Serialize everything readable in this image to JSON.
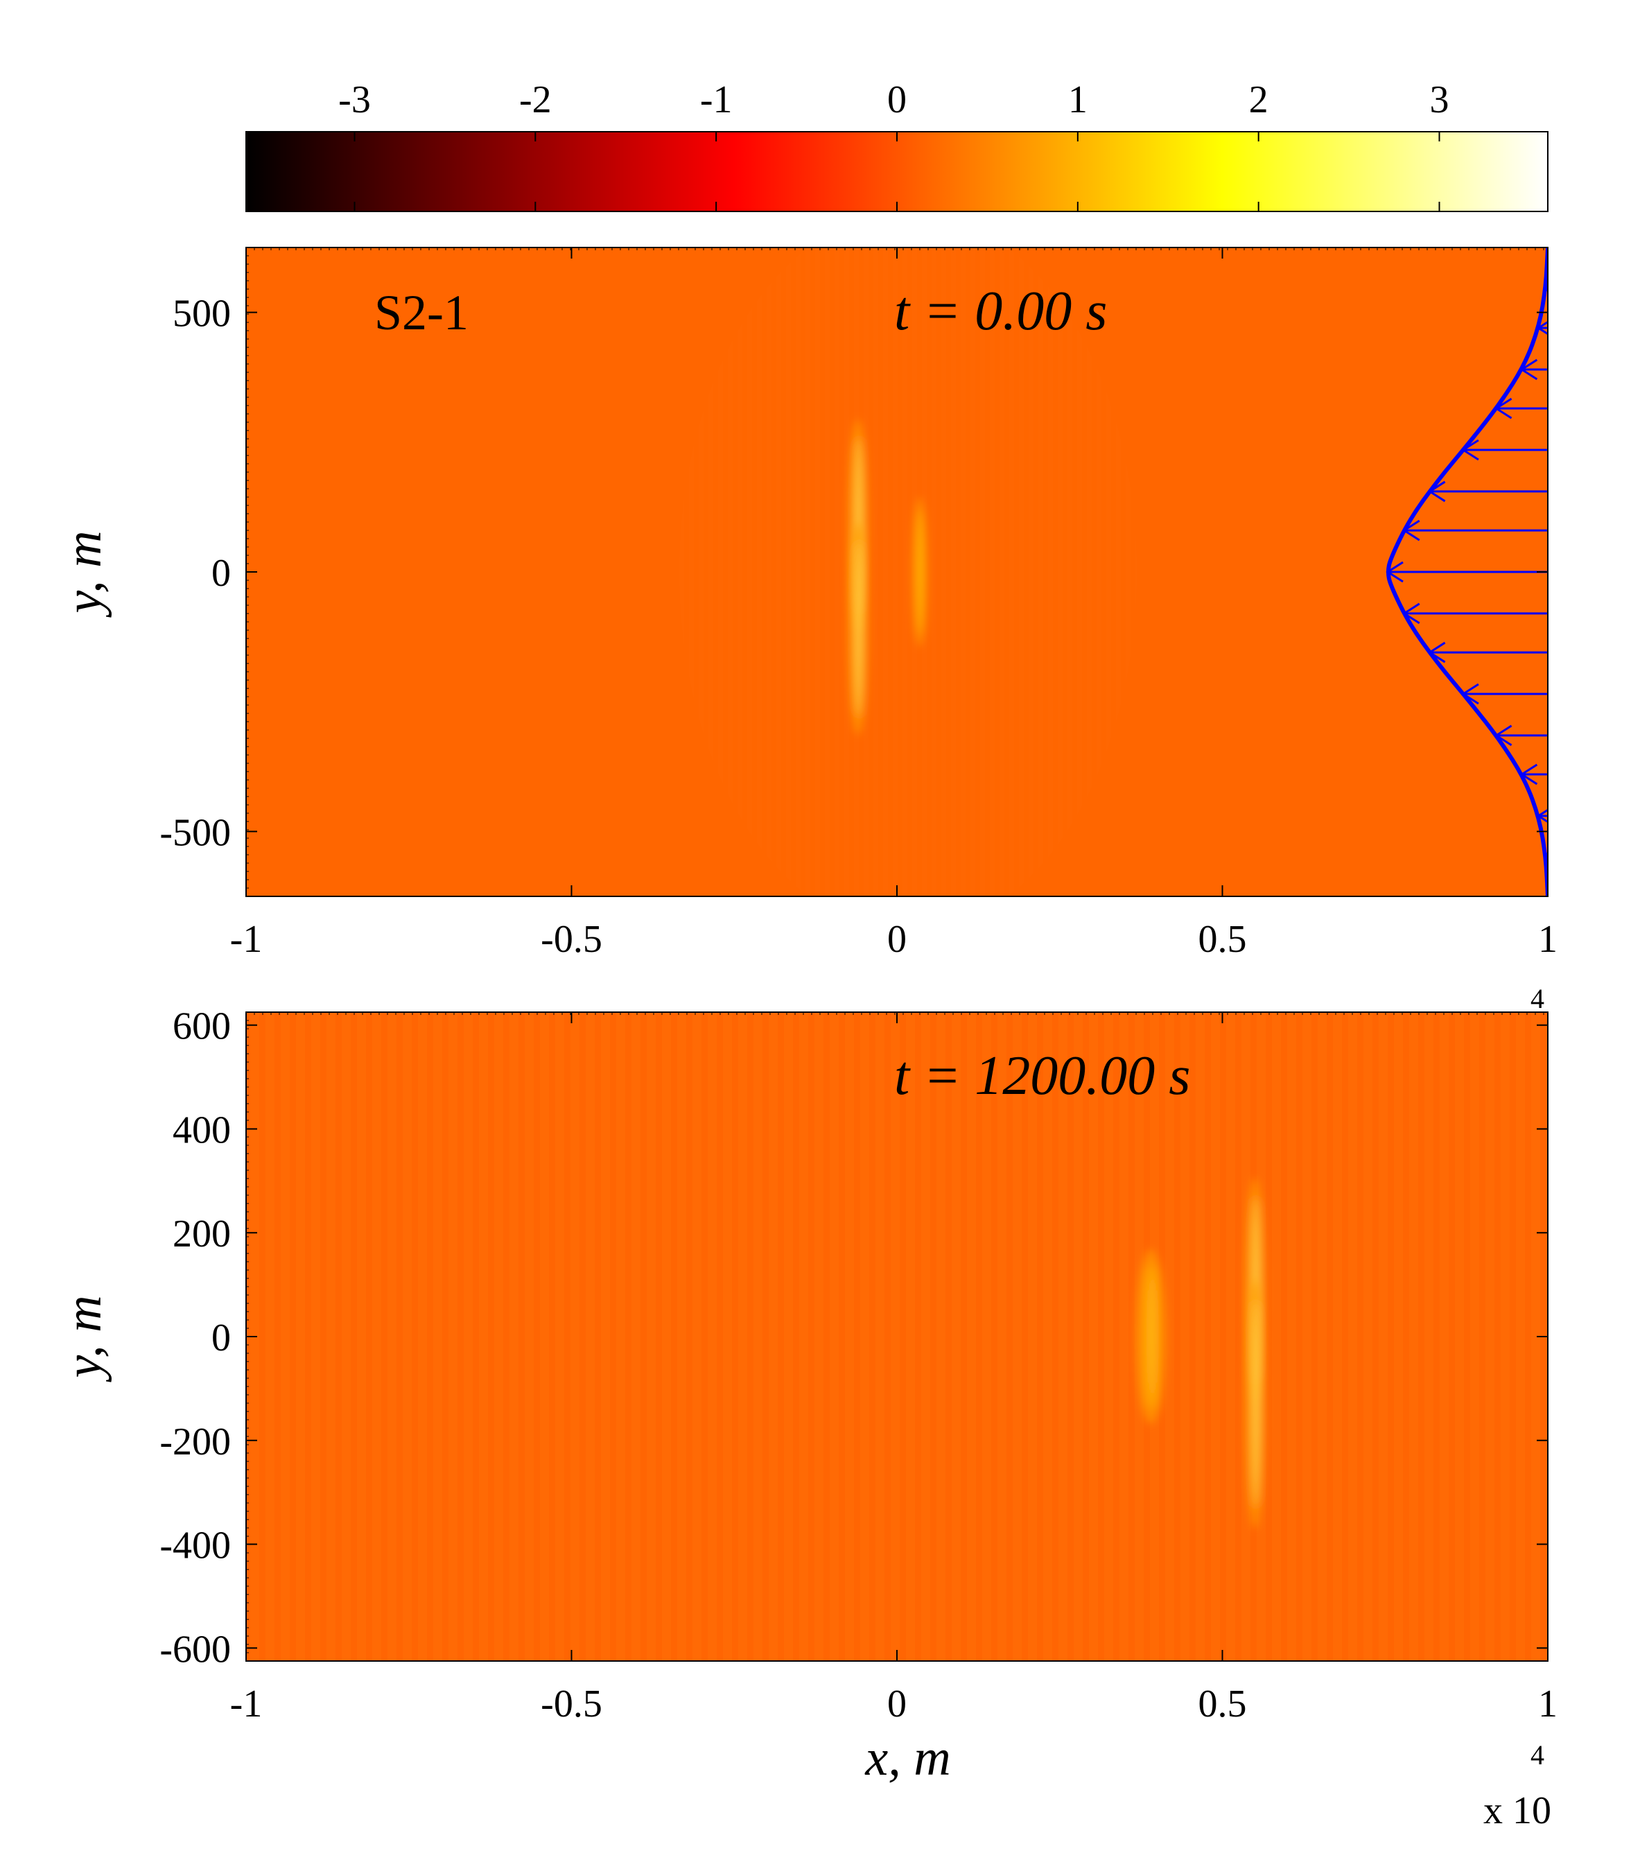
{
  "chart_data": [
    {
      "type": "colorbar",
      "orientation": "horizontal",
      "location": "top",
      "range": [
        -3.6,
        3.6
      ],
      "ticks": [
        -3,
        -2,
        -1,
        0,
        1,
        2,
        3
      ],
      "tick_labels": [
        "-3",
        "-2",
        "-1",
        "0",
        "1",
        "2",
        "3"
      ],
      "colormap": "hot",
      "colormap_stops": [
        "#000000",
        "#ff0000",
        "#ffff00",
        "#ffffff"
      ]
    },
    {
      "type": "heatmap",
      "panel_label": "S2-1",
      "time_label": "t = 0.00 s",
      "xlabel": "",
      "ylabel": "y, m",
      "xlim": [
        -10000,
        10000
      ],
      "ylim": [
        -625,
        625
      ],
      "x_ticks": [
        -10000,
        -5000,
        0,
        5000,
        10000
      ],
      "x_tick_labels": [
        "-1",
        "-0.5",
        "0",
        "0.5",
        "1"
      ],
      "y_ticks": [
        -500,
        0,
        500
      ],
      "y_tick_labels": [
        "-500",
        "0",
        "500"
      ],
      "x_exponent_label": "4",
      "background_value": 0.0,
      "features": [
        {
          "x": -600,
          "y": 90,
          "amplitude": 2.8,
          "width_x": 120,
          "width_y": 170
        },
        {
          "x": -600,
          "y": -110,
          "amplitude": 2.8,
          "width_x": 120,
          "width_y": 170
        },
        {
          "x": 350,
          "y": 0,
          "amplitude": 1.5,
          "width_x": 90,
          "width_y": 120
        }
      ],
      "inflow_profile": {
        "color": "#0000ff",
        "y": [
          -625,
          -550,
          -475,
          -400,
          -325,
          -250,
          -175,
          -100,
          -25,
          0,
          25,
          100,
          175,
          250,
          325,
          400,
          475,
          550,
          625
        ],
        "x": [
          10000,
          9970,
          9870,
          9650,
          9270,
          8800,
          8300,
          7870,
          7580,
          7540,
          7580,
          7870,
          8300,
          8800,
          9270,
          9650,
          9870,
          9970,
          10000
        ],
        "arrow_y": [
          -545,
          -470,
          -390,
          -315,
          -235,
          -155,
          -80,
          0,
          80,
          155,
          235,
          315,
          390,
          470,
          545
        ]
      }
    },
    {
      "type": "heatmap",
      "time_label": "t = 1200.00 s",
      "xlabel": "x, m",
      "ylabel": "y, m",
      "xlim": [
        -10000,
        10000
      ],
      "ylim": [
        -625,
        625
      ],
      "x_ticks": [
        -10000,
        -5000,
        0,
        5000,
        10000
      ],
      "x_tick_labels": [
        "-1",
        "-0.5",
        "0",
        "0.5",
        "1"
      ],
      "y_ticks": [
        -600,
        -400,
        -200,
        0,
        200,
        400,
        600
      ],
      "y_tick_labels": [
        "-600",
        "-400",
        "-200",
        "0",
        "200",
        "400",
        "600"
      ],
      "x_exponent_label": "x 10",
      "x_exponent_power": "4",
      "background_value": 0.0,
      "features": [
        {
          "x": 5500,
          "y": 90,
          "amplitude": 2.6,
          "width_x": 120,
          "width_y": 180
        },
        {
          "x": 5500,
          "y": -130,
          "amplitude": 2.6,
          "width_x": 120,
          "width_y": 200
        },
        {
          "x": 3900,
          "y": 0,
          "amplitude": 1.5,
          "width_x": 180,
          "width_y": 140
        }
      ]
    }
  ]
}
